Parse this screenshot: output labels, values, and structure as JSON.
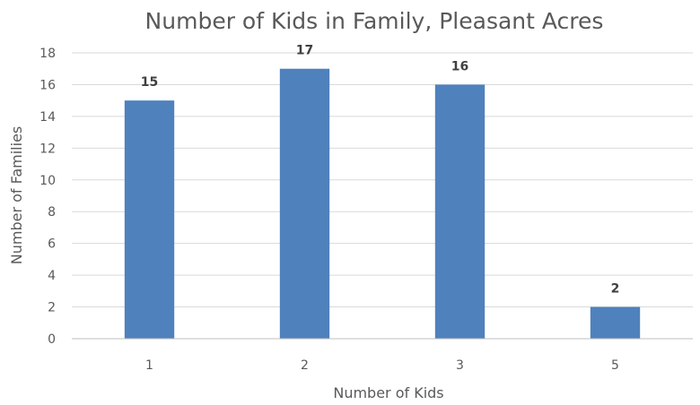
{
  "chart_data": {
    "type": "bar",
    "title": "Number of Kids in Family, Pleasant Acres",
    "xlabel": "Number of Kids",
    "ylabel": "Number of Families",
    "categories": [
      "1",
      "2",
      "3",
      "5"
    ],
    "values": [
      15,
      17,
      16,
      2
    ],
    "ylim": [
      0,
      18
    ],
    "yticks": [
      0,
      2,
      4,
      6,
      8,
      10,
      12,
      14,
      16,
      18
    ],
    "grid": true,
    "legend": "none",
    "bar_color": "#4f81bd",
    "data_labels": true
  }
}
